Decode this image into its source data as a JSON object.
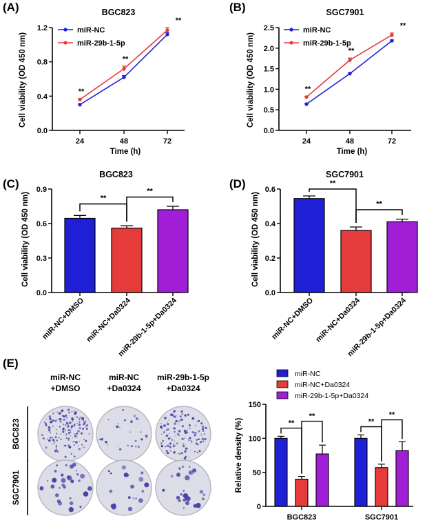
{
  "panels": {
    "A": "(A)",
    "B": "(B)",
    "C": "(C)",
    "D": "(D)",
    "E": "(E)"
  },
  "colors": {
    "nc": "#1f1fd6",
    "mir": "#e63b3b",
    "purple": "#a01fd6",
    "dish": "#dcdde6",
    "colony": "#4a3ea8"
  },
  "chart_data": [
    {
      "id": "A",
      "type": "line",
      "title": "BGC823",
      "xlabel": "Time (h)",
      "ylabel": "Cell viability (OD 450 nm)",
      "categories": [
        "24",
        "48",
        "72"
      ],
      "ylim": [
        0,
        1.2
      ],
      "yticks": [
        "0.0",
        "0.4",
        "0.8",
        "1.2"
      ],
      "series": [
        {
          "name": "miR-NC",
          "values": [
            0.3,
            0.62,
            1.12
          ],
          "err": [
            0.01,
            0.02,
            0.02
          ]
        },
        {
          "name": "miR-29b-1-5p",
          "values": [
            0.36,
            0.72,
            1.17
          ],
          "err": [
            0.01,
            0.03,
            0.03
          ]
        }
      ],
      "annotations": [
        "**",
        "**",
        "**"
      ]
    },
    {
      "id": "B",
      "type": "line",
      "title": "SGC7901",
      "xlabel": "Time (h)",
      "ylabel": "Cell viability (OD 450 nm)",
      "categories": [
        "24",
        "48",
        "72"
      ],
      "ylim": [
        0,
        2.5
      ],
      "yticks": [
        "0.0",
        "0.5",
        "1.0",
        "1.5",
        "2.0",
        "2.5"
      ],
      "series": [
        {
          "name": "miR-NC",
          "values": [
            0.64,
            1.38,
            2.18
          ],
          "err": [
            0.01,
            0.02,
            0.02
          ]
        },
        {
          "name": "miR-29b-1-5p",
          "values": [
            0.81,
            1.71,
            2.32
          ],
          "err": [
            0.02,
            0.05,
            0.05
          ]
        }
      ],
      "annotations": [
        "**",
        "**",
        "**"
      ]
    },
    {
      "id": "C",
      "type": "bar",
      "title": "BGC823",
      "xlabel": "",
      "ylabel": "Cell viability (OD 450 nm)",
      "categories": [
        "miR-NC+DMSO",
        "miR-NC+Da0324",
        "miR-29b-1-5p+Da0324"
      ],
      "values": [
        0.645,
        0.56,
        0.72
      ],
      "err": [
        0.025,
        0.02,
        0.03
      ],
      "ylim": [
        0,
        0.9
      ],
      "yticks": [
        "0.0",
        "0.3",
        "0.6",
        "0.9"
      ],
      "annotations": [
        "**",
        "**"
      ]
    },
    {
      "id": "D",
      "type": "bar",
      "title": "SGC7901",
      "xlabel": "",
      "ylabel": "Cell viability (OD 450 nm)",
      "categories": [
        "miR-NC+DMSO",
        "miR-NC+Da0324",
        "miR-29b-1-5p+Da0324"
      ],
      "values": [
        0.545,
        0.36,
        0.41
      ],
      "err": [
        0.015,
        0.02,
        0.015
      ],
      "ylim": [
        0,
        0.6
      ],
      "yticks": [
        "0.0",
        "0.2",
        "0.4",
        "0.6"
      ],
      "annotations": [
        "**",
        "**"
      ]
    },
    {
      "id": "E",
      "type": "bar",
      "title": "",
      "xlabel": "",
      "ylabel": "Relative density (%)",
      "categories": [
        "BGC823",
        "SGC7901"
      ],
      "series": [
        {
          "name": "miR-NC",
          "values": [
            100,
            100
          ],
          "err": [
            3,
            5
          ]
        },
        {
          "name": "miR-NC+Da0324",
          "values": [
            40,
            57
          ],
          "err": [
            4,
            5
          ]
        },
        {
          "name": "miR-29b-1-5p+Da0324",
          "values": [
            77,
            82
          ],
          "err": [
            13,
            13
          ]
        }
      ],
      "ylim": [
        0,
        150
      ],
      "yticks": [
        "0",
        "50",
        "100",
        "150"
      ],
      "annotations": [
        "**",
        "**",
        "**",
        "**"
      ]
    }
  ],
  "colony": {
    "columns": [
      "miR-NC\n+DMSO",
      "miR-NC\n+Da0324",
      "miR-29b-1-5p\n+Da0324"
    ],
    "col_line1": [
      "miR-NC",
      "miR-NC",
      "miR-29b-1-5p"
    ],
    "col_line2": [
      "+DMSO",
      "+Da0324",
      "+Da0324"
    ],
    "rows": [
      "BGC823",
      "SGC7901"
    ],
    "density": [
      [
        0.85,
        0.15,
        0.75
      ],
      [
        0.55,
        0.35,
        0.45
      ]
    ]
  }
}
